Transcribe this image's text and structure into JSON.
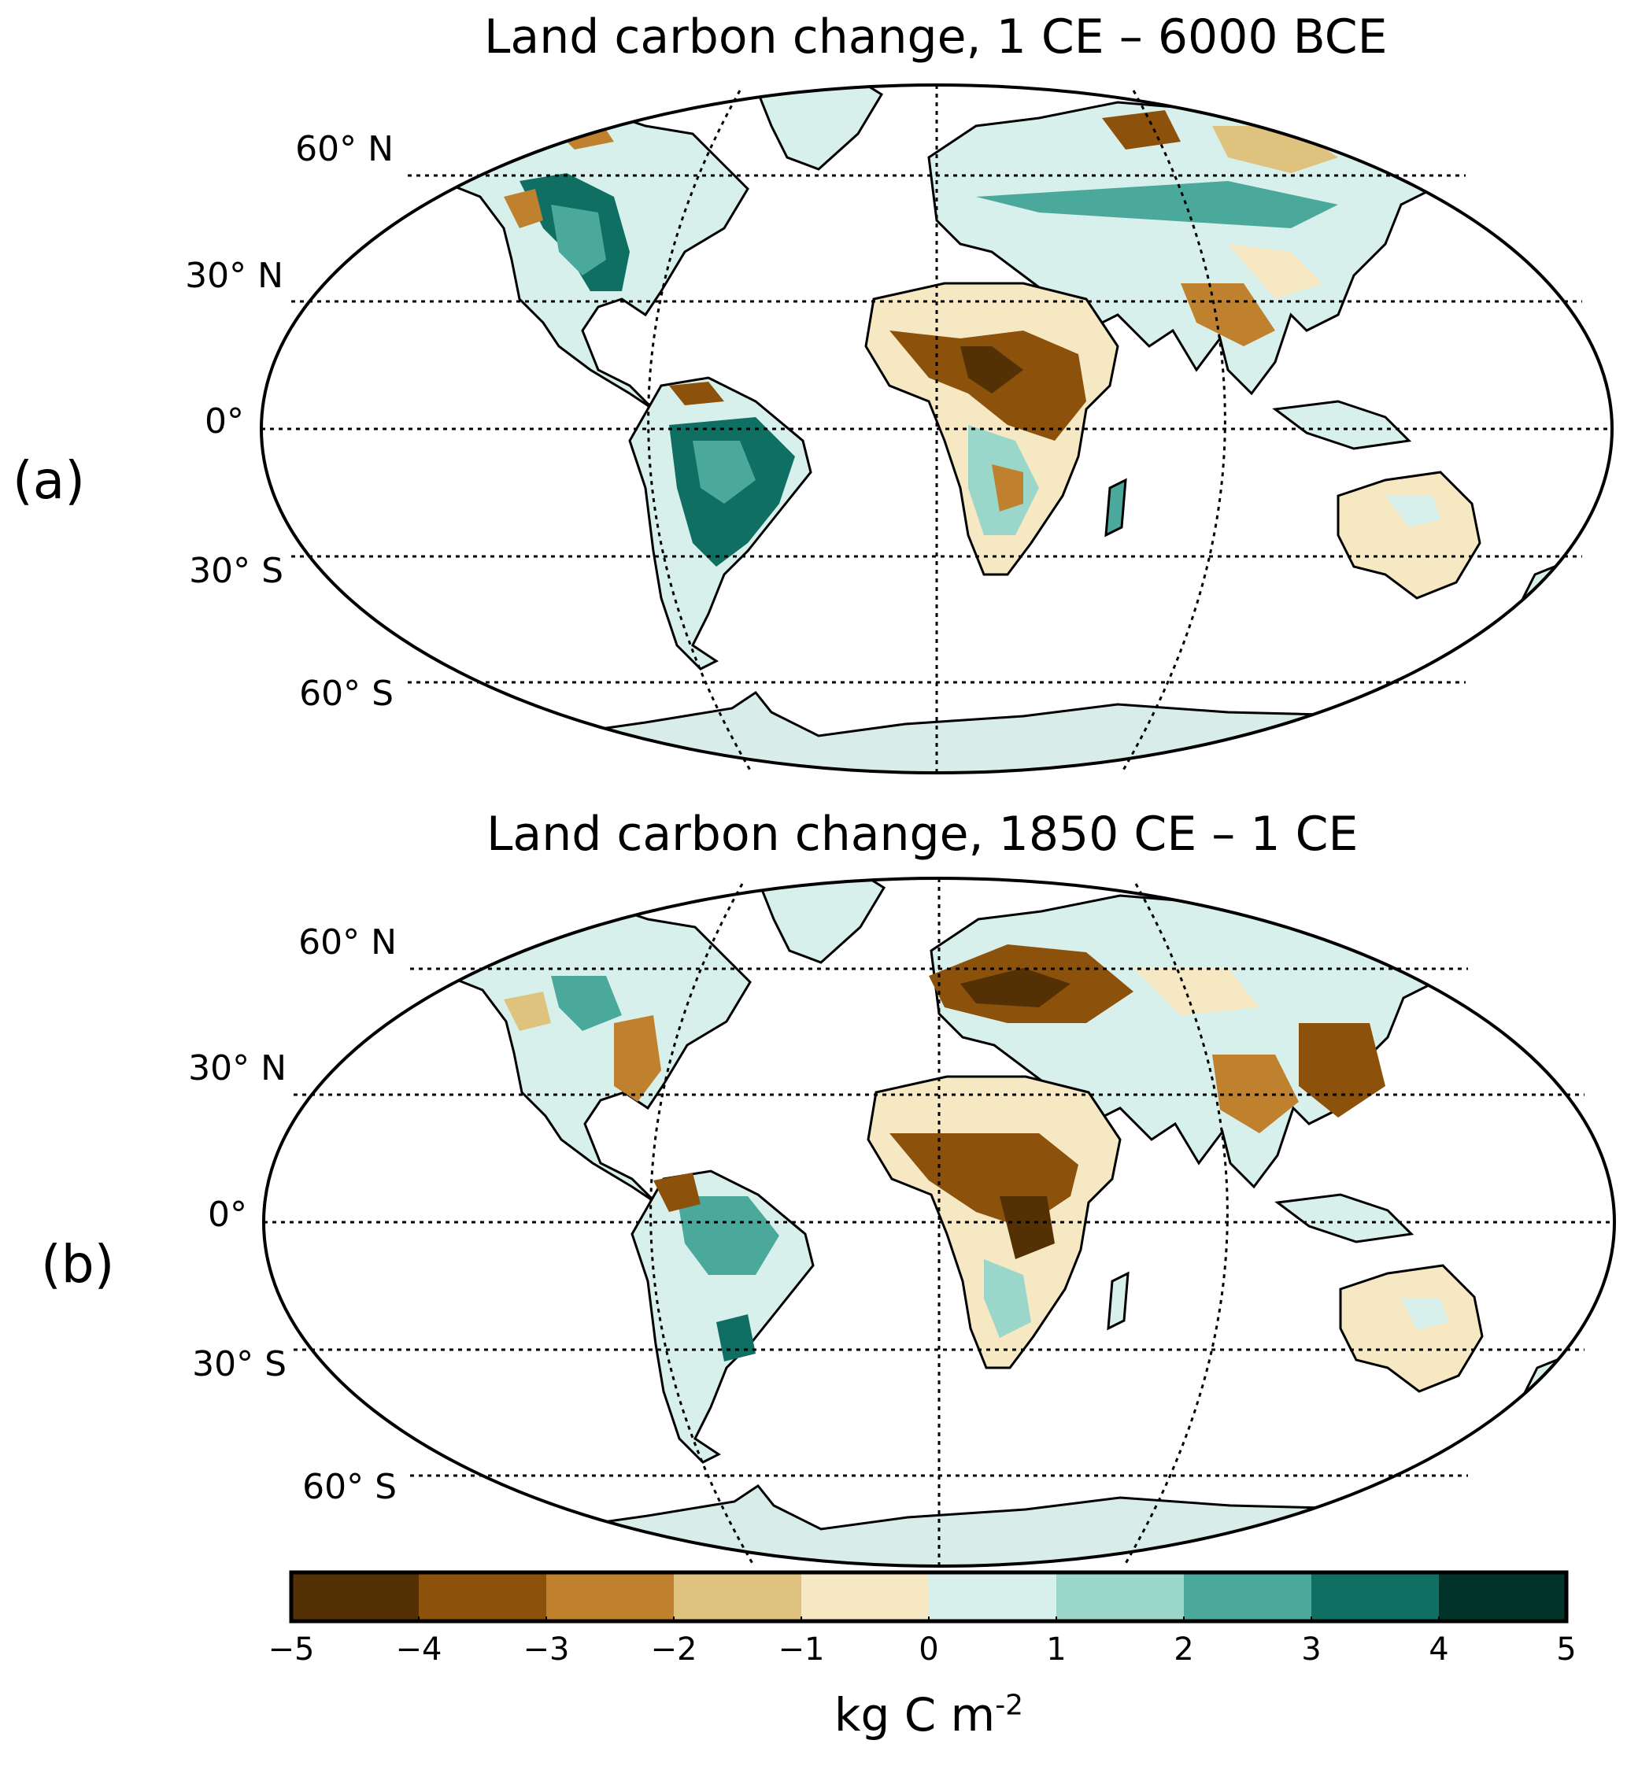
{
  "panels": [
    {
      "label": "(a)",
      "title": "Land carbon change, 1 CE – 6000 BCE",
      "lat_labels": [
        "60° N",
        "30° N",
        "0°",
        "30° S",
        "60° S"
      ]
    },
    {
      "label": "(b)",
      "title": "Land carbon change, 1850 CE – 1 CE",
      "lat_labels": [
        "60° N",
        "30° N",
        "0°",
        "30° S",
        "60° S"
      ]
    }
  ],
  "colorbar": {
    "ticks": [
      "−5",
      "−4",
      "−3",
      "−2",
      "−1",
      "0",
      "1",
      "2",
      "3",
      "4",
      "5"
    ],
    "colors": [
      "#543005",
      "#8c510a",
      "#bf812d",
      "#dfc27d",
      "#f6e8c3",
      "#d8f0ec",
      "#9bd6ca",
      "#4aa99b",
      "#0f6f63",
      "#01332b"
    ],
    "units": "kg C m",
    "units_exp": "-2"
  },
  "colors": {
    "ocean": "#ffffff",
    "coast": "#000000",
    "antarctica": "#d8ecea"
  }
}
